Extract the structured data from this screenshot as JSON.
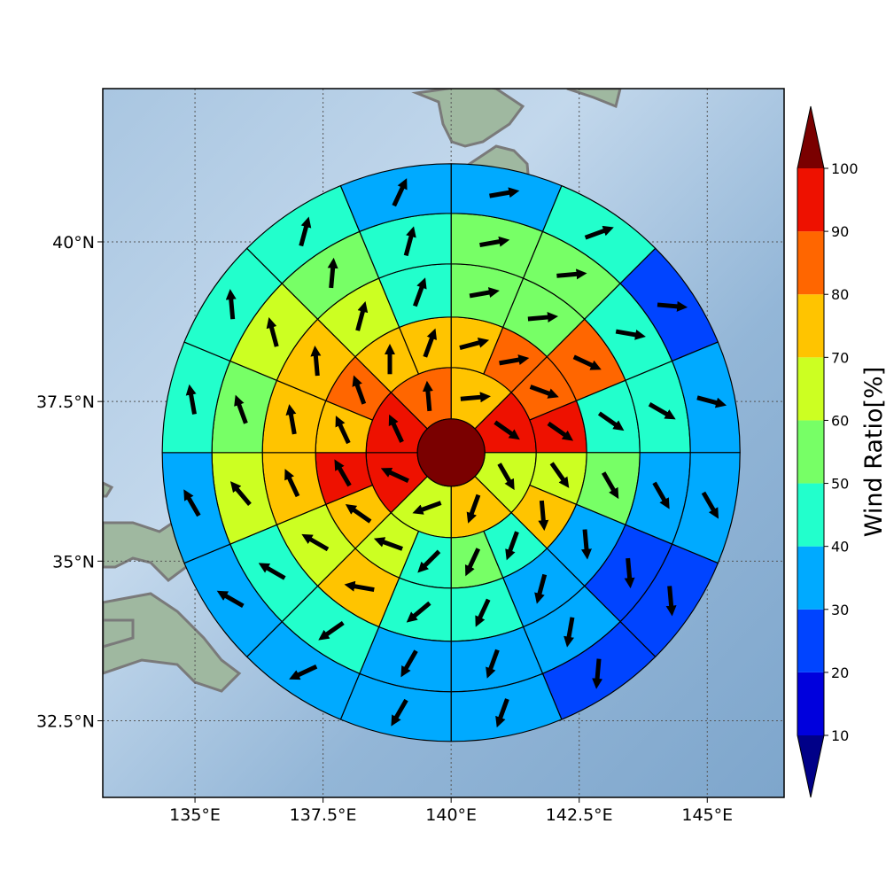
{
  "chart_data": {
    "type": "heatmap",
    "title": "",
    "map": {
      "lon_range": [
        133.2,
        146.5
      ],
      "lat_range": [
        31.3,
        42.4
      ],
      "center": [
        140.0,
        36.7
      ],
      "grid": true,
      "x_ticks": [
        135,
        137.5,
        140,
        142.5,
        145
      ],
      "x_tick_labels": [
        "135°E",
        "137.5°E",
        "140°E",
        "142.5°E",
        "145°E"
      ],
      "y_ticks": [
        32.5,
        35,
        37.5,
        40
      ],
      "y_tick_labels": [
        "32.5°N",
        "35°N",
        "37.5°N",
        "40°N"
      ]
    },
    "colorbar": {
      "label": "Wind Ratio[%]",
      "ticks": [
        10,
        20,
        30,
        40,
        50,
        60,
        70,
        80,
        90,
        100
      ],
      "bins": [
        {
          "range": [
            0,
            10
          ],
          "color": "#0000dd"
        },
        {
          "range": [
            10,
            20
          ],
          "color": "#0000dd"
        },
        {
          "range": [
            20,
            30
          ],
          "color": "#0044ff"
        },
        {
          "range": [
            30,
            40
          ],
          "color": "#00aaff"
        },
        {
          "range": [
            40,
            50
          ],
          "color": "#22ffcc"
        },
        {
          "range": [
            50,
            60
          ],
          "color": "#77ff66"
        },
        {
          "range": [
            60,
            70
          ],
          "color": "#ccff22"
        },
        {
          "range": [
            70,
            80
          ],
          "color": "#ffc400"
        },
        {
          "range": [
            80,
            90
          ],
          "color": "#ff6600"
        },
        {
          "range": [
            90,
            100
          ],
          "color": "#ee1100"
        }
      ],
      "under_color": "#000088",
      "over_color": "#7a0000",
      "extend": "both"
    },
    "center_value": 100,
    "rings": [
      {
        "sectors": 8,
        "values": [
          75,
          95,
          65,
          75,
          65,
          95,
          95,
          85
        ],
        "wind_dir_deg": [
          85,
          125,
          150,
          200,
          250,
          295,
          335,
          355
        ]
      },
      {
        "sectors": 16,
        "values": [
          75,
          85,
          85,
          95,
          65,
          75,
          45,
          55,
          45,
          65,
          75,
          95,
          75,
          85,
          75,
          75
        ],
        "wind_dir_deg": [
          75,
          80,
          110,
          125,
          145,
          175,
          200,
          205,
          225,
          290,
          305,
          330,
          335,
          340,
          0,
          20
        ]
      },
      {
        "sectors": 16,
        "values": [
          55,
          55,
          85,
          45,
          55,
          35,
          35,
          45,
          45,
          75,
          65,
          75,
          75,
          75,
          65,
          45
        ],
        "wind_dir_deg": [
          80,
          85,
          115,
          125,
          150,
          175,
          195,
          205,
          230,
          280,
          300,
          335,
          350,
          355,
          15,
          20
        ]
      },
      {
        "sectors": 16,
        "values": [
          55,
          55,
          45,
          45,
          35,
          25,
          35,
          35,
          35,
          45,
          45,
          65,
          55,
          65,
          55,
          45
        ],
        "wind_dir_deg": [
          80,
          85,
          100,
          120,
          150,
          175,
          190,
          200,
          210,
          235,
          300,
          320,
          340,
          345,
          5,
          15
        ]
      },
      {
        "sectors": 16,
        "values": [
          35,
          45,
          25,
          35,
          35,
          25,
          25,
          35,
          35,
          35,
          35,
          35,
          45,
          45,
          45,
          35
        ],
        "wind_dir_deg": [
          80,
          70,
          95,
          105,
          150,
          175,
          185,
          200,
          210,
          245,
          300,
          330,
          350,
          355,
          15,
          25
        ]
      }
    ]
  }
}
